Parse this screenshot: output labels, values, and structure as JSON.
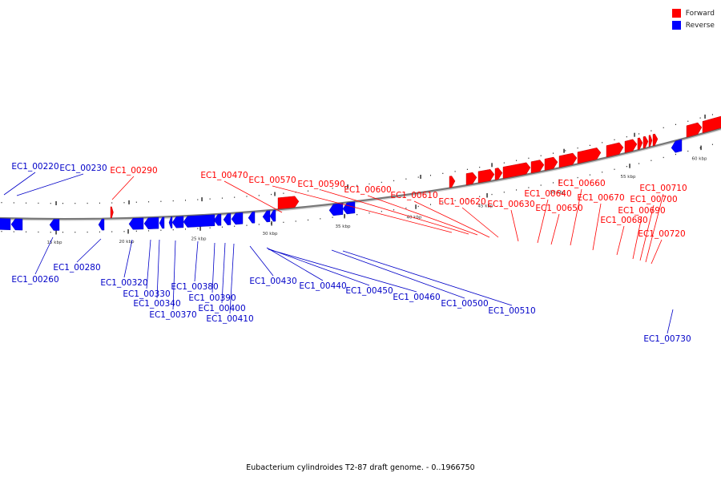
{
  "caption": "Eubacterium cylindroides T2-87 draft genome. - 0..1966750",
  "legend": [
    {
      "label": "Forward",
      "color": "#ff0000"
    },
    {
      "label": "Reverse",
      "color": "#0000ff"
    }
  ],
  "scale": [
    "15 kbp",
    "20 kbp",
    "25 kbp",
    "30 kbp",
    "35 kbp",
    "40 kbp",
    "45 kbp",
    "50 kbp",
    "55 kbp",
    "60 kbp"
  ],
  "genes": [
    {
      "id": "EC1_00220",
      "strand": "reverse"
    },
    {
      "id": "EC1_00230",
      "strand": "reverse"
    },
    {
      "id": "EC1_00260",
      "strand": "reverse"
    },
    {
      "id": "EC1_00280",
      "strand": "reverse"
    },
    {
      "id": "EC1_00290",
      "strand": "forward"
    },
    {
      "id": "EC1_00320",
      "strand": "reverse"
    },
    {
      "id": "EC1_00330",
      "strand": "reverse"
    },
    {
      "id": "EC1_00340",
      "strand": "reverse"
    },
    {
      "id": "EC1_00370",
      "strand": "reverse"
    },
    {
      "id": "EC1_00380",
      "strand": "reverse"
    },
    {
      "id": "EC1_00390",
      "strand": "reverse"
    },
    {
      "id": "EC1_00400",
      "strand": "reverse"
    },
    {
      "id": "EC1_00410",
      "strand": "reverse"
    },
    {
      "id": "EC1_00430",
      "strand": "reverse"
    },
    {
      "id": "EC1_00440",
      "strand": "reverse"
    },
    {
      "id": "EC1_00450",
      "strand": "reverse"
    },
    {
      "id": "EC1_00460",
      "strand": "reverse"
    },
    {
      "id": "EC1_00470",
      "strand": "forward"
    },
    {
      "id": "EC1_00500",
      "strand": "reverse"
    },
    {
      "id": "EC1_00510",
      "strand": "reverse"
    },
    {
      "id": "EC1_00570",
      "strand": "forward"
    },
    {
      "id": "EC1_00590",
      "strand": "forward"
    },
    {
      "id": "EC1_00600",
      "strand": "forward"
    },
    {
      "id": "EC1_00610",
      "strand": "forward"
    },
    {
      "id": "EC1_00620",
      "strand": "forward"
    },
    {
      "id": "EC1_00630",
      "strand": "forward"
    },
    {
      "id": "EC1_00640",
      "strand": "forward"
    },
    {
      "id": "EC1_00650",
      "strand": "forward"
    },
    {
      "id": "EC1_00660",
      "strand": "forward"
    },
    {
      "id": "EC1_00670",
      "strand": "forward"
    },
    {
      "id": "EC1_00680",
      "strand": "forward"
    },
    {
      "id": "EC1_00690",
      "strand": "forward"
    },
    {
      "id": "EC1_00700",
      "strand": "forward"
    },
    {
      "id": "EC1_00710",
      "strand": "forward"
    },
    {
      "id": "EC1_00720",
      "strand": "forward"
    },
    {
      "id": "EC1_00730",
      "strand": "reverse"
    }
  ]
}
